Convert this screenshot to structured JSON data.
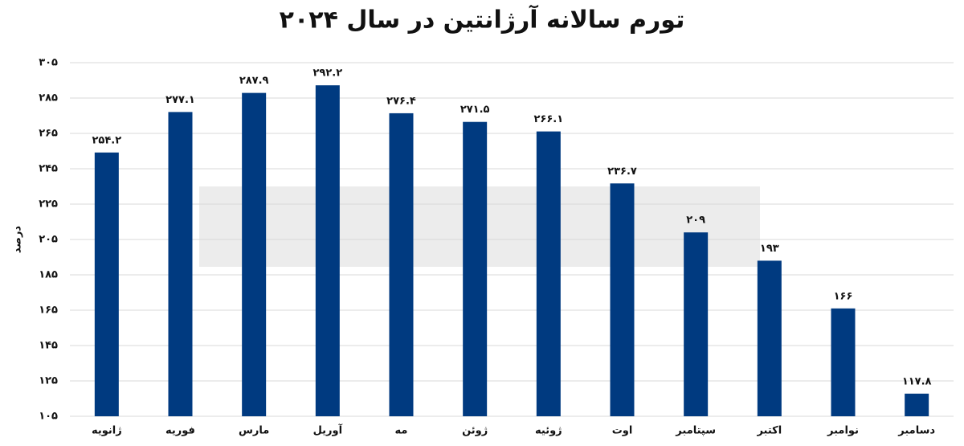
{
  "chart_data": {
    "type": "bar",
    "title": "تورم سالانه آرژانتین در سال ۲۰۲۴",
    "y_label": "درصد",
    "categories": [
      "ژانویه",
      "فوریه",
      "مارس",
      "آوریل",
      "مه",
      "ژوئن",
      "ژوئیه",
      "اوت",
      "سپتامبر",
      "اکتبر",
      "نوامبر",
      "دسامبر"
    ],
    "values": [
      254.2,
      277.1,
      287.9,
      292.2,
      276.4,
      271.5,
      266.1,
      236.7,
      209,
      193,
      166,
      117.8
    ],
    "value_labels": [
      "۲۵۴.۲",
      "۲۷۷.۱",
      "۲۸۷.۹",
      "۲۹۲.۲",
      "۲۷۶.۴",
      "۲۷۱.۵",
      "۲۶۶.۱",
      "۲۳۶.۷",
      "۲۰۹",
      "۱۹۳",
      "۱۶۶",
      "۱۱۷.۸"
    ],
    "color": "#003a80",
    "ylim": [
      105,
      305
    ],
    "yticks": [
      {
        "value": 105,
        "label": "۱۰۵"
      },
      {
        "value": 125,
        "label": "۱۲۵"
      },
      {
        "value": 145,
        "label": "۱۴۵"
      },
      {
        "value": 165,
        "label": "۱۶۵"
      },
      {
        "value": 185,
        "label": "۱۸۵"
      },
      {
        "value": 205,
        "label": "۲۰۵"
      },
      {
        "value": 225,
        "label": "۲۲۵"
      },
      {
        "value": 245,
        "label": "۲۴۵"
      },
      {
        "value": 265,
        "label": "۲۶۵"
      },
      {
        "value": 285,
        "label": "۲۸۵"
      },
      {
        "value": 305,
        "label": "۳۰۵"
      }
    ],
    "grid": true
  }
}
